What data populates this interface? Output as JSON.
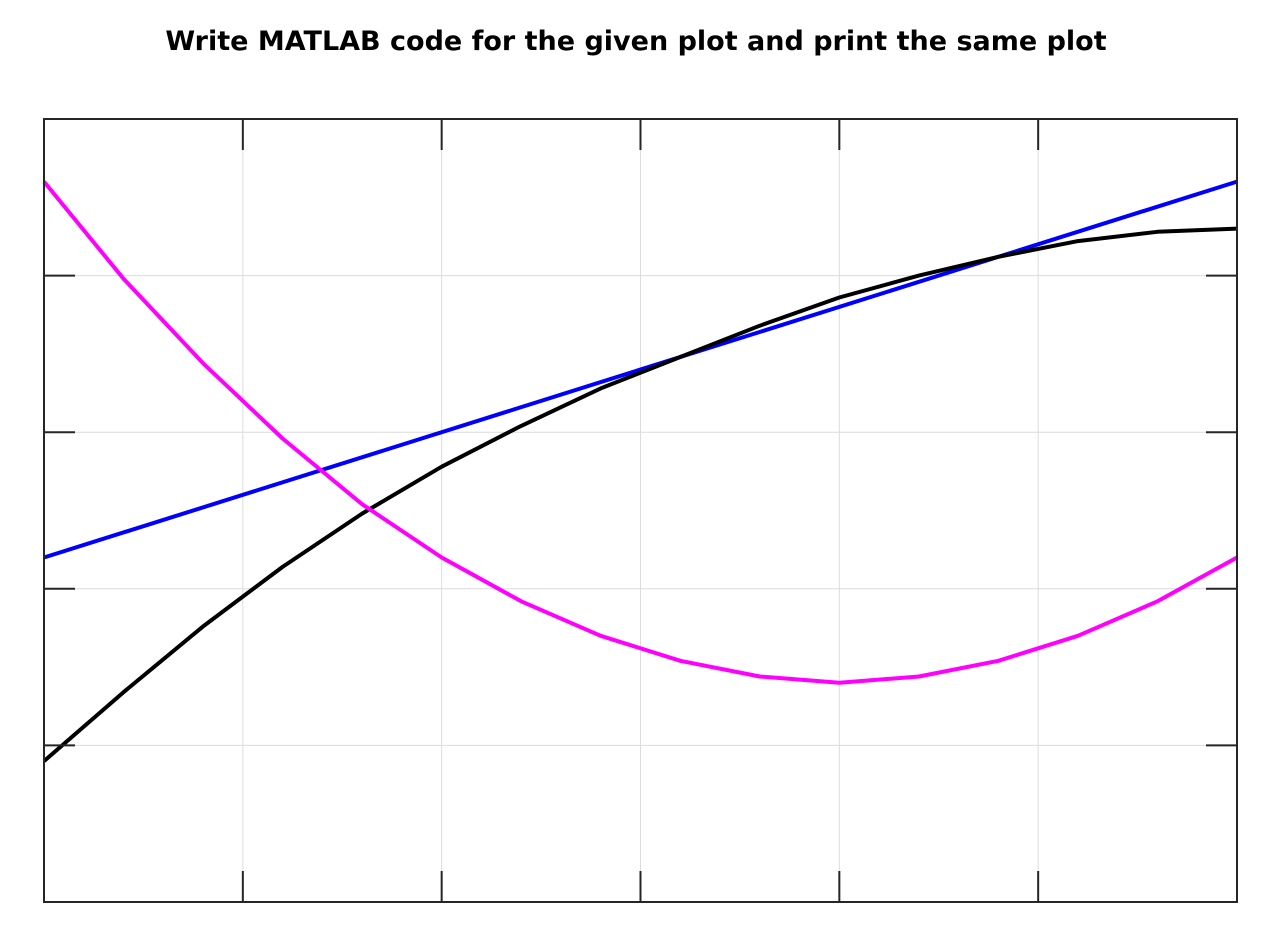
{
  "header": {
    "text": "Write MATLAB code for the given plot and print the same plot"
  },
  "chart_data": {
    "type": "line",
    "title": "",
    "xlabel": "",
    "ylabel": "",
    "xlim": [
      0,
      3
    ],
    "ylim": [
      -1,
      1.5
    ],
    "xticks": [
      0,
      0.5,
      1,
      1.5,
      2,
      2.5,
      3
    ],
    "yticks": [
      -1,
      -0.5,
      0,
      0.5,
      1,
      1.5
    ],
    "tick_labels_visible": false,
    "grid": true,
    "box": true,
    "series": [
      {
        "color": "#0000ff",
        "x": [
          0,
          3
        ],
        "y": [
          0.1,
          1.3
        ]
      },
      {
        "color": "#000000",
        "x": [
          0,
          0.2,
          0.4,
          0.6,
          0.8,
          1.0,
          1.2,
          1.4,
          1.6,
          1.8,
          2.0,
          2.2,
          2.4,
          2.6,
          2.8,
          3.0
        ],
        "y": [
          -0.55,
          -0.33,
          -0.12,
          0.07,
          0.24,
          0.39,
          0.52,
          0.64,
          0.74,
          0.84,
          0.93,
          1.0,
          1.06,
          1.11,
          1.14,
          1.15
        ],
        "note": ""
      },
      {
        "color": "#ff00ff",
        "x": [
          0,
          0.2,
          0.4,
          0.6,
          0.8,
          1.0,
          1.2,
          1.4,
          1.6,
          1.8,
          2.0,
          2.2,
          2.4,
          2.6,
          2.8,
          3.0
        ],
        "y": [
          1.3,
          0.99,
          0.72,
          0.48,
          0.27,
          0.1,
          -0.04,
          -0.15,
          -0.23,
          -0.28,
          -0.3,
          -0.28,
          -0.23,
          -0.15,
          -0.04,
          0.1
        ]
      }
    ]
  }
}
